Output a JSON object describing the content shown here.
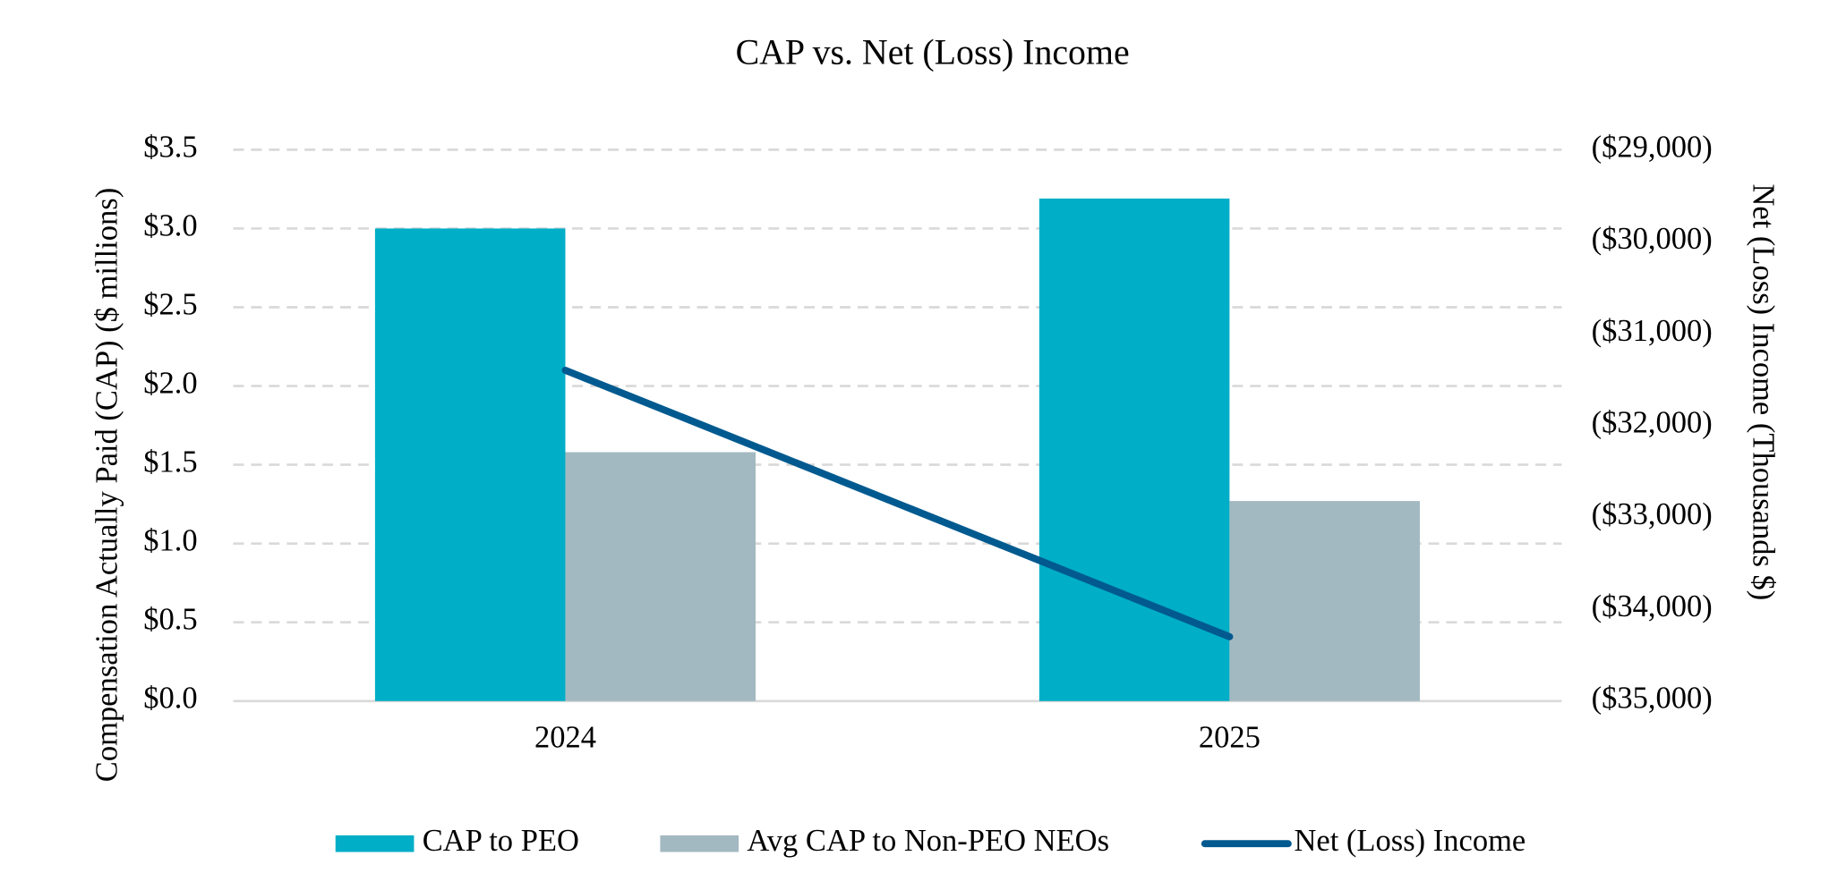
{
  "chart_data": {
    "type": "bar",
    "title": "CAP vs. Net (Loss) Income",
    "categories": [
      "2024",
      "2025"
    ],
    "y_label": "Compensation Actually Paid (CAP) ($ millions)",
    "y2_label": "Net (Loss) Income (Thousands $)",
    "ylim": [
      0,
      3.5
    ],
    "yticks": [
      {
        "value": 0,
        "label": "$0.0"
      },
      {
        "value": 0.5,
        "label": "$0.5"
      },
      {
        "value": 1,
        "label": "$1.0"
      },
      {
        "value": 1.5,
        "label": "$1.5"
      },
      {
        "value": 2,
        "label": "$2.0"
      },
      {
        "value": 2.5,
        "label": "$2.5"
      },
      {
        "value": 3,
        "label": "$3.0"
      },
      {
        "value": 3.5,
        "label": "$3.5"
      }
    ],
    "y2lim": [
      -35000,
      -29000
    ],
    "y2ticks": [
      {
        "value": -35000,
        "label": "($35,000)"
      },
      {
        "value": -34000,
        "label": "($34,000)"
      },
      {
        "value": -33000,
        "label": "($33,000)"
      },
      {
        "value": -32000,
        "label": "($32,000)"
      },
      {
        "value": -31000,
        "label": "($31,000)"
      },
      {
        "value": -30000,
        "label": "($30,000)"
      },
      {
        "value": -29000,
        "label": "($29,000)"
      }
    ],
    "grid": true,
    "legend": "bottom",
    "series": [
      {
        "name": "CAP to PEO",
        "type": "bar",
        "color": "#00aec7",
        "values": [
          3.0,
          3.19
        ]
      },
      {
        "name": "Avg CAP to Non-PEO NEOs",
        "type": "bar",
        "color": "#a3b9c1",
        "values": [
          1.58,
          1.27
        ]
      },
      {
        "name": "Net (Loss) Income",
        "type": "line",
        "axis": "y2",
        "color": "#005a8f",
        "values": [
          -31400,
          -34300
        ]
      }
    ]
  }
}
